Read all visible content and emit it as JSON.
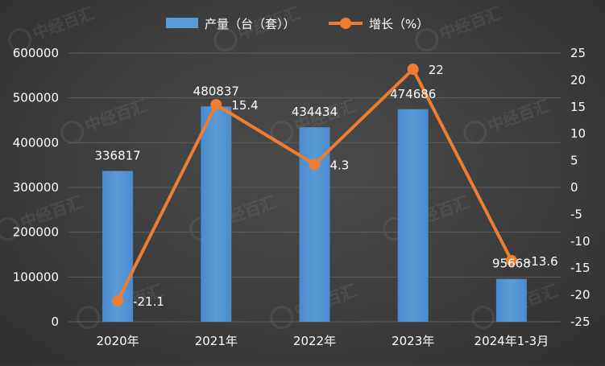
{
  "chart_data": {
    "type": "bar+line",
    "categories": [
      "2020年",
      "2021年",
      "2022年",
      "2023年",
      "2024年1-3月"
    ],
    "series": [
      {
        "name": "产量（台（套））",
        "type": "bar",
        "axis": "left",
        "values": [
          336817,
          480837,
          434434,
          474686,
          95668
        ],
        "color": "#5b9bd5"
      },
      {
        "name": "增长（%）",
        "type": "line",
        "axis": "right",
        "values": [
          -21.1,
          15.4,
          4.3,
          22,
          -13.6
        ],
        "color": "#ed7d31"
      }
    ],
    "y_left": {
      "min": 0,
      "max": 600000,
      "ticks": [
        "0",
        "100000",
        "200000",
        "300000",
        "400000",
        "500000",
        "600000"
      ]
    },
    "y_right": {
      "min": -25,
      "max": 25,
      "ticks": [
        "-25",
        "-20",
        "-15",
        "-10",
        "-5",
        "0",
        "5",
        "10",
        "15",
        "20",
        "25"
      ]
    },
    "bar_labels": [
      "336817",
      "480837",
      "434434",
      "474686",
      "95668"
    ],
    "line_labels": [
      "-21.1",
      "15.4",
      "4.3",
      "22",
      "-13.6"
    ],
    "legend": {
      "position": "top"
    },
    "grid": true
  },
  "watermark": {
    "text": "中经百汇"
  }
}
